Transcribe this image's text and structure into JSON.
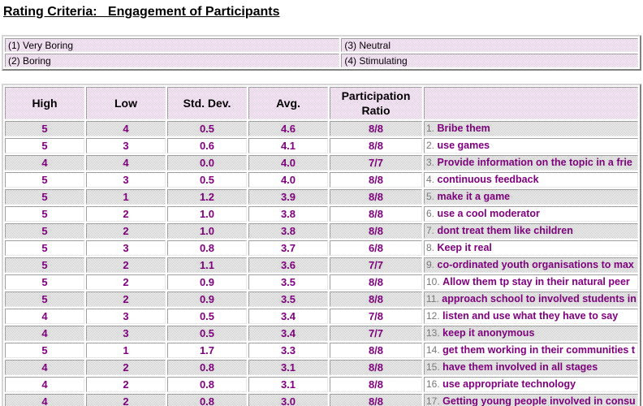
{
  "page": {
    "title": "Rating Criteria:   Engagement of Participants"
  },
  "colors": {
    "value_text": "#800080",
    "item_prefix": "#777777",
    "header_pink": "#eac0ea",
    "row_shade_gray": "#c3c3c3"
  },
  "legend": {
    "items": [
      "(1) Very Boring",
      "(2) Boring",
      "(3) Neutral",
      "(4) Stimulating"
    ]
  },
  "table": {
    "headers": [
      "High",
      "Low",
      "Std. Dev.",
      "Avg.",
      "Participation Ratio",
      ""
    ],
    "rows": [
      {
        "high": "5",
        "low": "4",
        "std": "0.5",
        "avg": "4.6",
        "ratio": "8/8",
        "num": "1.",
        "label": "Bribe them"
      },
      {
        "high": "5",
        "low": "3",
        "std": "0.6",
        "avg": "4.1",
        "ratio": "8/8",
        "num": "2.",
        "label": "use games"
      },
      {
        "high": "4",
        "low": "4",
        "std": "0.0",
        "avg": "4.0",
        "ratio": "7/7",
        "num": "3.",
        "label": "Provide information on the topic in a frie"
      },
      {
        "high": "5",
        "low": "3",
        "std": "0.5",
        "avg": "4.0",
        "ratio": "8/8",
        "num": "4.",
        "label": "continuous feedback"
      },
      {
        "high": "5",
        "low": "1",
        "std": "1.2",
        "avg": "3.9",
        "ratio": "8/8",
        "num": "5.",
        "label": "make it a game"
      },
      {
        "high": "5",
        "low": "2",
        "std": "1.0",
        "avg": "3.8",
        "ratio": "8/8",
        "num": "6.",
        "label": "use a cool moderator"
      },
      {
        "high": "5",
        "low": "2",
        "std": "1.0",
        "avg": "3.8",
        "ratio": "8/8",
        "num": "7.",
        "label": "dont treat them like children"
      },
      {
        "high": "5",
        "low": "3",
        "std": "0.8",
        "avg": "3.7",
        "ratio": "6/8",
        "num": "8.",
        "label": "Keep it real"
      },
      {
        "high": "5",
        "low": "2",
        "std": "1.1",
        "avg": "3.6",
        "ratio": "7/7",
        "num": "9.",
        "label": "co-ordinated youth organisations to max"
      },
      {
        "high": "5",
        "low": "2",
        "std": "0.9",
        "avg": "3.5",
        "ratio": "8/8",
        "num": "10.",
        "label": "Allow them tp stay in their natural peer"
      },
      {
        "high": "5",
        "low": "2",
        "std": "0.9",
        "avg": "3.5",
        "ratio": "8/8",
        "num": "11.",
        "label": "approach school to involved students in"
      },
      {
        "high": "4",
        "low": "3",
        "std": "0.5",
        "avg": "3.4",
        "ratio": "7/8",
        "num": "12.",
        "label": "listen and use what they have to say"
      },
      {
        "high": "4",
        "low": "3",
        "std": "0.5",
        "avg": "3.4",
        "ratio": "7/7",
        "num": "13.",
        "label": "keep it anonymous"
      },
      {
        "high": "5",
        "low": "1",
        "std": "1.7",
        "avg": "3.3",
        "ratio": "8/8",
        "num": "14.",
        "label": "get them working in their communities t"
      },
      {
        "high": "4",
        "low": "2",
        "std": "0.8",
        "avg": "3.1",
        "ratio": "8/8",
        "num": "15.",
        "label": "have them involved in all stages"
      },
      {
        "high": "4",
        "low": "2",
        "std": "0.8",
        "avg": "3.1",
        "ratio": "8/8",
        "num": "16.",
        "label": "use appropriate technology"
      },
      {
        "high": "4",
        "low": "2",
        "std": "0.8",
        "avg": "3.0",
        "ratio": "8/8",
        "num": "17.",
        "label": "Getting young people involved in consu"
      }
    ]
  }
}
